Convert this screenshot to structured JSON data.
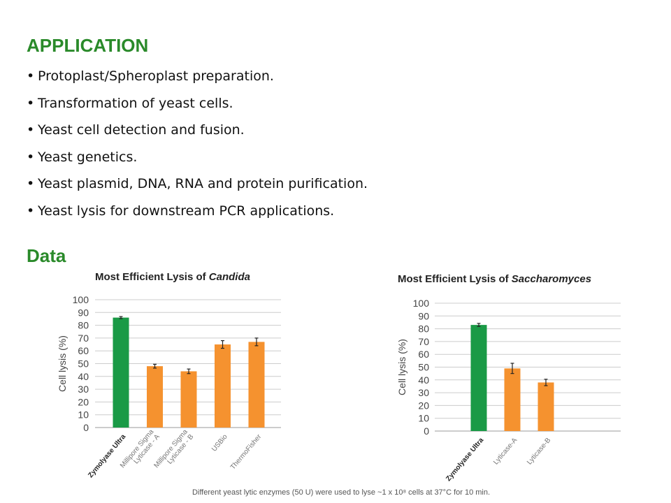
{
  "application": {
    "heading": "APPLICATION",
    "items": [
      "Protoplast/Spheroplast preparation.",
      "Transformation of yeast cells.",
      "Yeast cell detection and fusion.",
      "Yeast genetics.",
      "Yeast plasmid, DNA, RNA and protein purification.",
      "Yeast lysis for downstream PCR applications."
    ]
  },
  "data_heading": "Data",
  "colors": {
    "heading": "#2a8a2a",
    "green_bar": "#1a9a46",
    "orange_bar": "#f5922f",
    "grid": "#cccccc"
  },
  "caption": "Different yeast lytic enzymes (50 U) were used to lyse ~1 x 10⁸ cells at 37°C for 10 min.",
  "chart_data": [
    {
      "type": "bar",
      "title_prefix": "Most Efficient Lysis of ",
      "title_italic": "Candida",
      "ylabel": "Cell lysis (%)",
      "xlabel": "",
      "ylim": [
        0,
        100
      ],
      "yticks": [
        0,
        10,
        20,
        30,
        40,
        50,
        60,
        70,
        80,
        90,
        100
      ],
      "categories": [
        [
          "Zymolyase Ultra"
        ],
        [
          "Millipore Sigma",
          "Lyticase - A"
        ],
        [
          "Millipore Sigma",
          "Lyticase - B"
        ],
        [
          "USBio"
        ],
        [
          "ThermoFisher"
        ]
      ],
      "values": [
        86,
        48,
        44,
        65,
        67
      ],
      "errors": [
        0.8,
        1.5,
        1.8,
        3,
        3
      ],
      "bar_colors": [
        "green",
        "orange",
        "orange",
        "orange",
        "orange"
      ],
      "bold_category_index": 0,
      "grid": true,
      "legend": "none"
    },
    {
      "type": "bar",
      "title_prefix": "Most Efficient Lysis of ",
      "title_italic": "Saccharomyces",
      "ylabel": "Cell lysis (%)",
      "xlabel": "",
      "ylim": [
        0,
        100
      ],
      "yticks": [
        0,
        10,
        20,
        30,
        40,
        50,
        60,
        70,
        80,
        90,
        100
      ],
      "categories": [
        [
          "Zymolyase Ultra"
        ],
        [
          "Lyticase-A"
        ],
        [
          "Lyticase-B"
        ]
      ],
      "values": [
        83,
        49,
        38
      ],
      "errors": [
        1.2,
        4,
        2.5
      ],
      "bar_colors": [
        "green",
        "orange",
        "orange"
      ],
      "bold_category_index": 0,
      "grid": true,
      "legend": "none"
    }
  ]
}
